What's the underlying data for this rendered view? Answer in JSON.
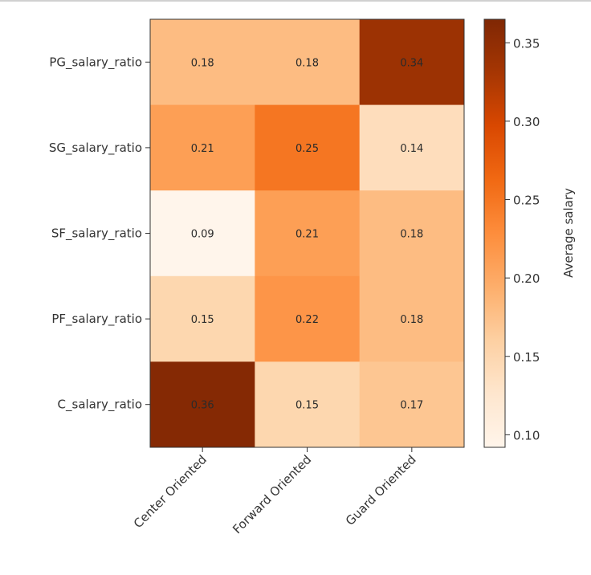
{
  "chart_data": {
    "type": "heatmap",
    "title": "",
    "xlabel": "",
    "ylabel": "",
    "x_categories": [
      "Center Oriented",
      "Forward Oriented",
      "Guard Oriented"
    ],
    "y_categories": [
      "PG_salary_ratio",
      "SG_salary_ratio",
      "SF_salary_ratio",
      "PF_salary_ratio",
      "C_salary_ratio"
    ],
    "values": [
      [
        0.18,
        0.18,
        0.34
      ],
      [
        0.21,
        0.25,
        0.14
      ],
      [
        0.09,
        0.21,
        0.18
      ],
      [
        0.15,
        0.22,
        0.18
      ],
      [
        0.36,
        0.15,
        0.17
      ]
    ],
    "value_labels": [
      [
        "0.18",
        "0.18",
        "0.34"
      ],
      [
        "0.21",
        "0.25",
        "0.14"
      ],
      [
        "0.09",
        "0.21",
        "0.18"
      ],
      [
        "0.15",
        "0.22",
        "0.18"
      ],
      [
        "0.36",
        "0.15",
        "0.17"
      ]
    ],
    "colormap": "Oranges",
    "colormap_stops": [
      "#fff5eb",
      "#fee6ce",
      "#fdd0a2",
      "#fdae6b",
      "#fd8d3c",
      "#f16913",
      "#d94801",
      "#a63603",
      "#7f2704"
    ],
    "colorbar": {
      "label": "Average salary",
      "range": [
        0.092,
        0.365
      ],
      "ticks": [
        0.1,
        0.15,
        0.2,
        0.25,
        0.3,
        0.35
      ],
      "tick_labels": [
        "0.10",
        "0.15",
        "0.20",
        "0.25",
        "0.30",
        "0.35"
      ]
    }
  }
}
